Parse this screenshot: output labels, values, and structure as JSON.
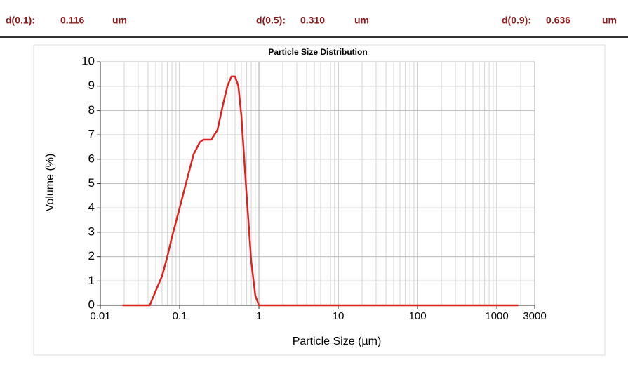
{
  "header": [
    {
      "label": "d(0.1):",
      "value": "0.116",
      "unit": "um"
    },
    {
      "label": "d(0.5):",
      "value": "0.310",
      "unit": "um"
    },
    {
      "label": "d(0.9):",
      "value": "0.636",
      "unit": "um"
    }
  ],
  "chart_data": {
    "type": "line",
    "title": "Particle Size Distribution",
    "x_label": "Particle Size (µm)",
    "y_label": "Volume (%)",
    "x_scale": "log",
    "grid": true,
    "xlim": [
      0.01,
      3000
    ],
    "xticks": [
      0.01,
      0.1,
      1,
      10,
      100,
      1000,
      3000
    ],
    "ylim": [
      0,
      10
    ],
    "yticks": [
      0,
      1,
      2,
      3,
      4,
      5,
      6,
      7,
      8,
      9,
      10
    ],
    "series": [
      {
        "name": "Volume",
        "color": "#e0201c",
        "x": [
          0.019,
          0.042,
          0.05,
          0.06,
          0.07,
          0.08,
          0.1,
          0.12,
          0.15,
          0.18,
          0.2,
          0.25,
          0.3,
          0.35,
          0.4,
          0.45,
          0.5,
          0.55,
          0.6,
          0.7,
          0.8,
          0.9,
          1.0,
          1860
        ],
        "values": [
          0,
          0,
          0.6,
          1.2,
          2.0,
          2.8,
          4.0,
          5.0,
          6.2,
          6.7,
          6.8,
          6.8,
          7.2,
          8.2,
          9.0,
          9.4,
          9.4,
          9.0,
          7.8,
          4.5,
          1.8,
          0.4,
          0,
          0
        ]
      }
    ]
  }
}
